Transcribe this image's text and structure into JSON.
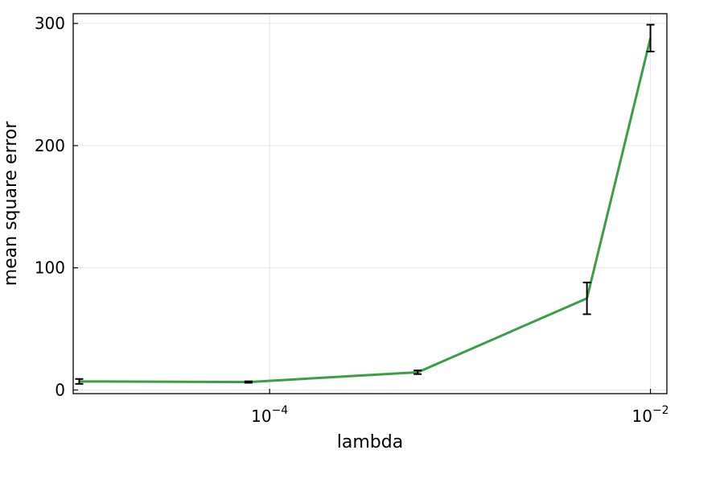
{
  "chart_data": {
    "type": "line",
    "xlabel": "lambda",
    "ylabel": "mean square error",
    "xscale": "log",
    "xlim": [
      9.3e-06,
      0.0122
    ],
    "ylim": [
      -3,
      308
    ],
    "grid": true,
    "legend": "none",
    "x_ticks": [
      {
        "value": 0.0001,
        "base": "10",
        "exponent": "−4"
      },
      {
        "value": 0.01,
        "base": "10",
        "exponent": "−2"
      }
    ],
    "y_ticks": [
      {
        "value": 0,
        "label": "0"
      },
      {
        "value": 100,
        "label": "100"
      },
      {
        "value": 200,
        "label": "200"
      },
      {
        "value": 300,
        "label": "300"
      }
    ],
    "series": [
      {
        "x": [
          1e-05,
          7.74e-05,
          0.000599,
          0.00464,
          0.01
        ],
        "y": [
          7,
          6.5,
          14.5,
          75,
          288
        ],
        "error": [
          2,
          0.6,
          1.5,
          13,
          11
        ]
      }
    ],
    "colors": {
      "line": "#3a9e48",
      "errorbar": "#000000",
      "grid": "#e6e6e6",
      "frame": "#000000"
    }
  }
}
